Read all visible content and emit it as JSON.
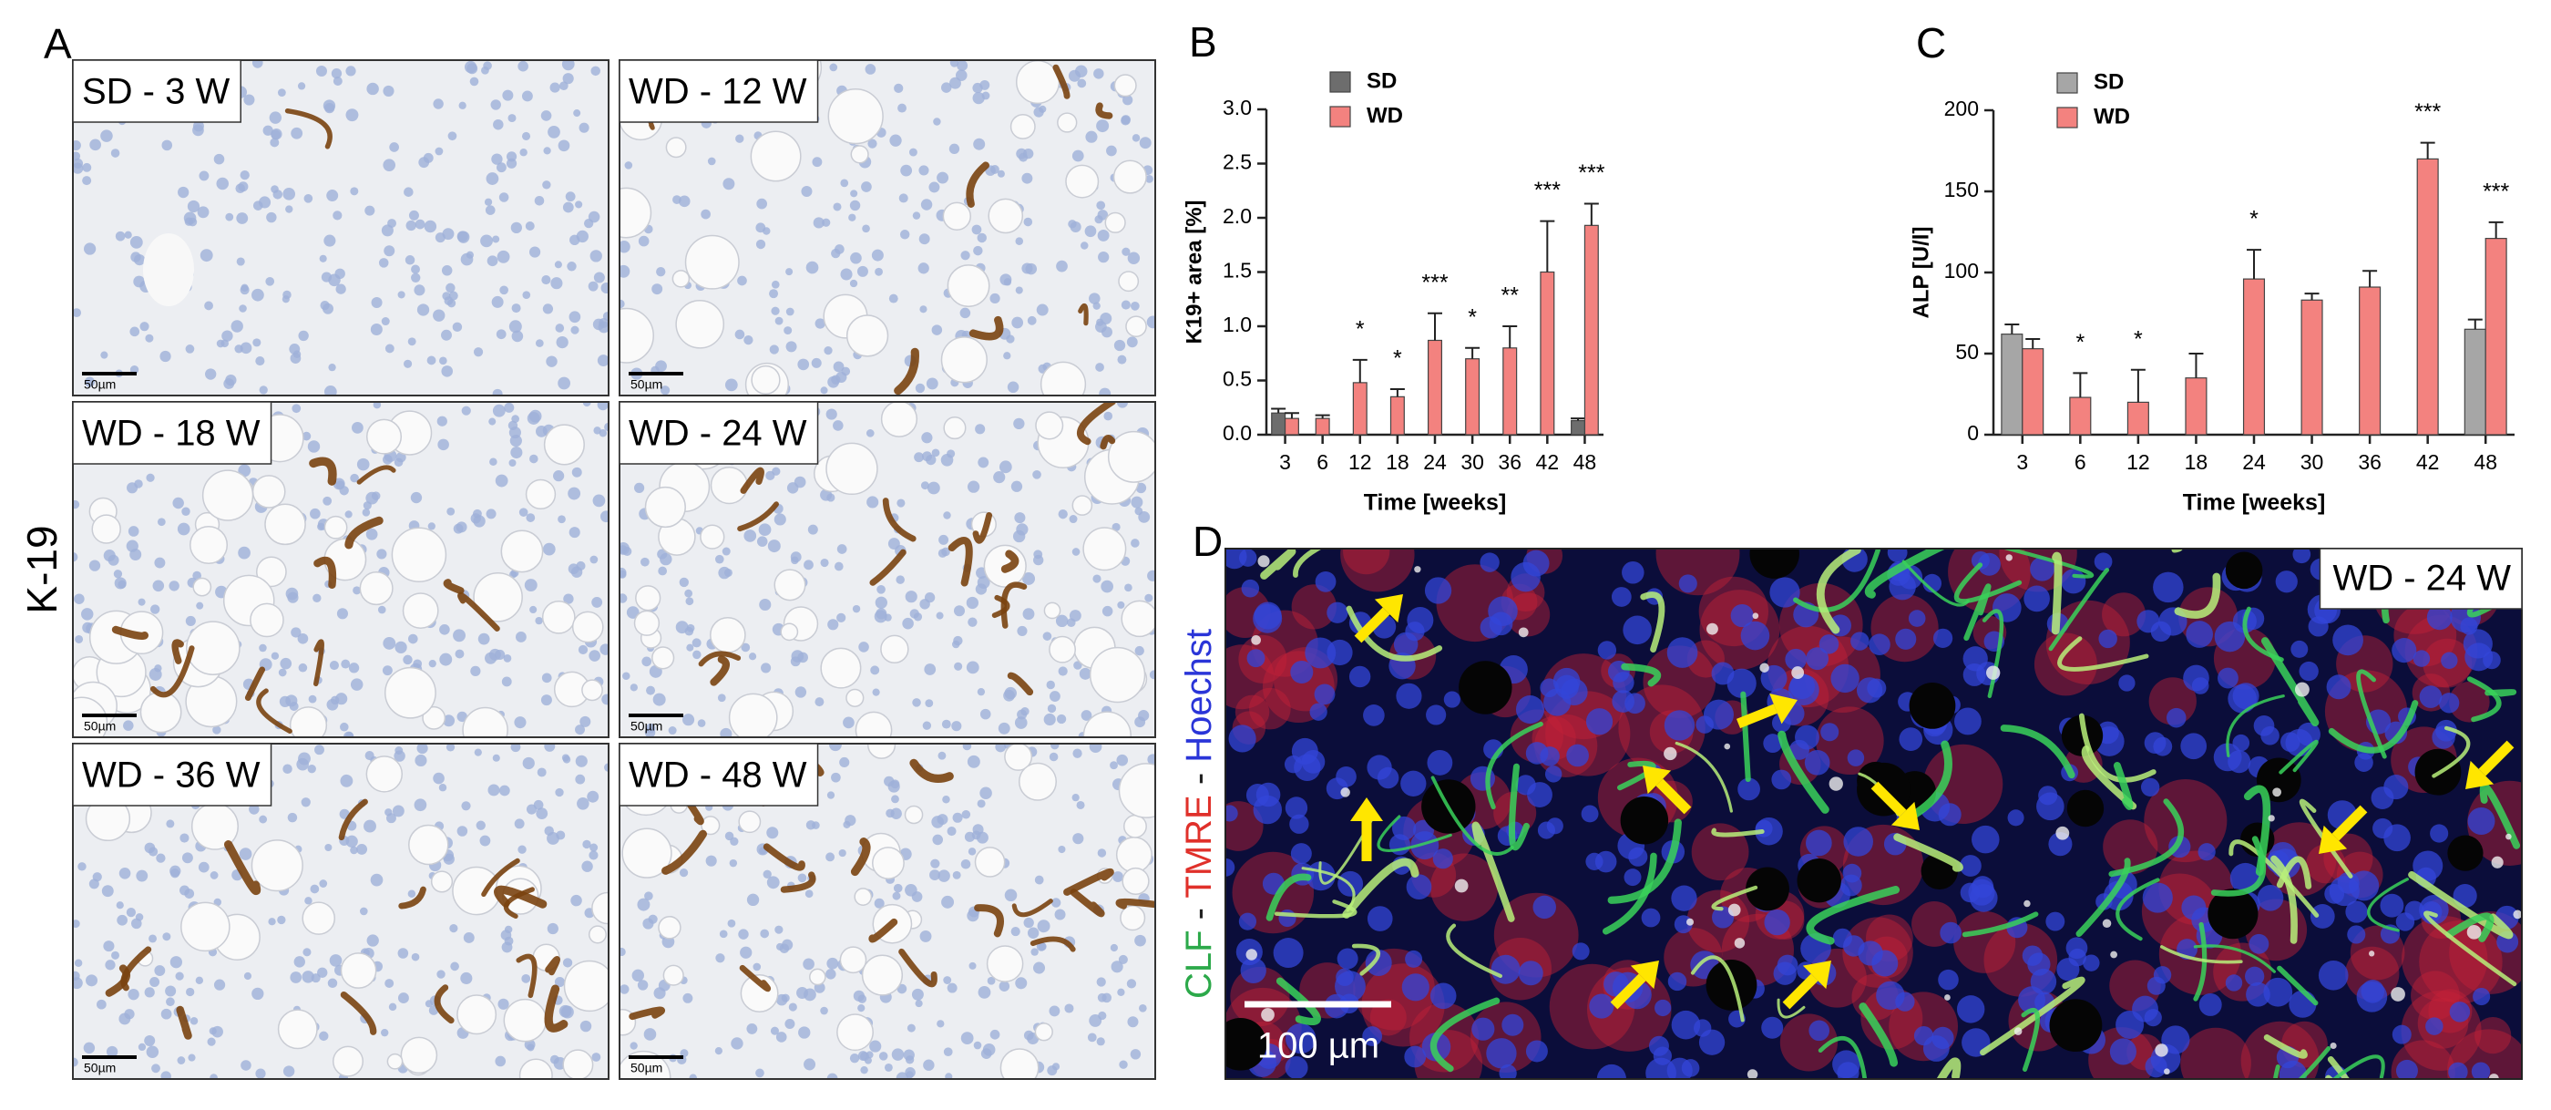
{
  "panel_a": {
    "label": "A",
    "side_label": "K-19",
    "images": [
      {
        "label": "SD - 3 W",
        "scale_bar": "50µm"
      },
      {
        "label": "WD - 12 W",
        "scale_bar": "50µm"
      },
      {
        "label": "WD - 18 W",
        "scale_bar": "50µm"
      },
      {
        "label": "WD - 24 W",
        "scale_bar": "50µm"
      },
      {
        "label": "WD - 36 W",
        "scale_bar": "50µm"
      },
      {
        "label": "WD - 48 W",
        "scale_bar": "50µm"
      }
    ]
  },
  "chart_data": [
    {
      "type": "bar",
      "panel_label": "B",
      "y_label": "K19+ area [%]",
      "x_label": "Time [weeks]",
      "categories": [
        "3",
        "6",
        "12",
        "18",
        "24",
        "30",
        "36",
        "42",
        "48"
      ],
      "ylim": [
        0,
        3
      ],
      "yticks": [
        {
          "value": 0,
          "label": "0.0"
        },
        {
          "value": 0.5,
          "label": "0.5"
        },
        {
          "value": 1,
          "label": "1.0"
        },
        {
          "value": 1.5,
          "label": "1.5"
        },
        {
          "value": 2,
          "label": "2.0"
        },
        {
          "value": 2.5,
          "label": "2.5"
        },
        {
          "value": 3,
          "label": "3.0"
        }
      ],
      "series": [
        {
          "name": "SD",
          "color": "#6d6d6d",
          "values": [
            0.2,
            null,
            null,
            null,
            null,
            null,
            null,
            null,
            0.13
          ],
          "errors": [
            0.04,
            null,
            null,
            null,
            null,
            null,
            null,
            null,
            0.02
          ],
          "annotations": [
            null,
            null,
            null,
            null,
            null,
            null,
            null,
            null,
            null
          ]
        },
        {
          "name": "WD",
          "color": "#f3827f",
          "values": [
            0.15,
            0.15,
            0.48,
            0.35,
            0.87,
            0.7,
            0.8,
            1.5,
            1.93
          ],
          "errors": [
            0.05,
            0.03,
            0.21,
            0.07,
            0.25,
            0.1,
            0.2,
            0.47,
            0.2
          ],
          "annotations": [
            null,
            null,
            "*",
            "*",
            "***",
            "*",
            "**",
            "***",
            "***"
          ]
        }
      ]
    },
    {
      "type": "bar",
      "panel_label": "C",
      "y_label": "ALP [U/l]",
      "x_label": "Time [weeks]",
      "categories": [
        "3",
        "6",
        "12",
        "18",
        "24",
        "30",
        "36",
        "42",
        "48"
      ],
      "ylim": [
        0,
        200
      ],
      "yticks": [
        0,
        50,
        100,
        150,
        200
      ],
      "series": [
        {
          "name": "SD",
          "color": "#a6a6a6",
          "values": [
            62,
            null,
            null,
            null,
            null,
            null,
            null,
            null,
            65
          ],
          "errors": [
            6,
            null,
            null,
            null,
            null,
            null,
            null,
            null,
            6
          ],
          "annotations": [
            null,
            null,
            null,
            null,
            null,
            null,
            null,
            null,
            null
          ]
        },
        {
          "name": "WD",
          "color": "#f3827f",
          "values": [
            53,
            23,
            20,
            35,
            96,
            83,
            91,
            170,
            121
          ],
          "errors": [
            6,
            15,
            20,
            15,
            18,
            4,
            10,
            10,
            10
          ],
          "annotations": [
            null,
            "*",
            "*",
            null,
            "*",
            null,
            null,
            "***",
            "***"
          ]
        }
      ]
    }
  ],
  "panel_d": {
    "label": "D",
    "image_label": "WD - 24 W",
    "scale_bar": "100 µm",
    "channels": [
      "CLF",
      " - ",
      "TMRE",
      " - ",
      "Hoechst"
    ]
  }
}
